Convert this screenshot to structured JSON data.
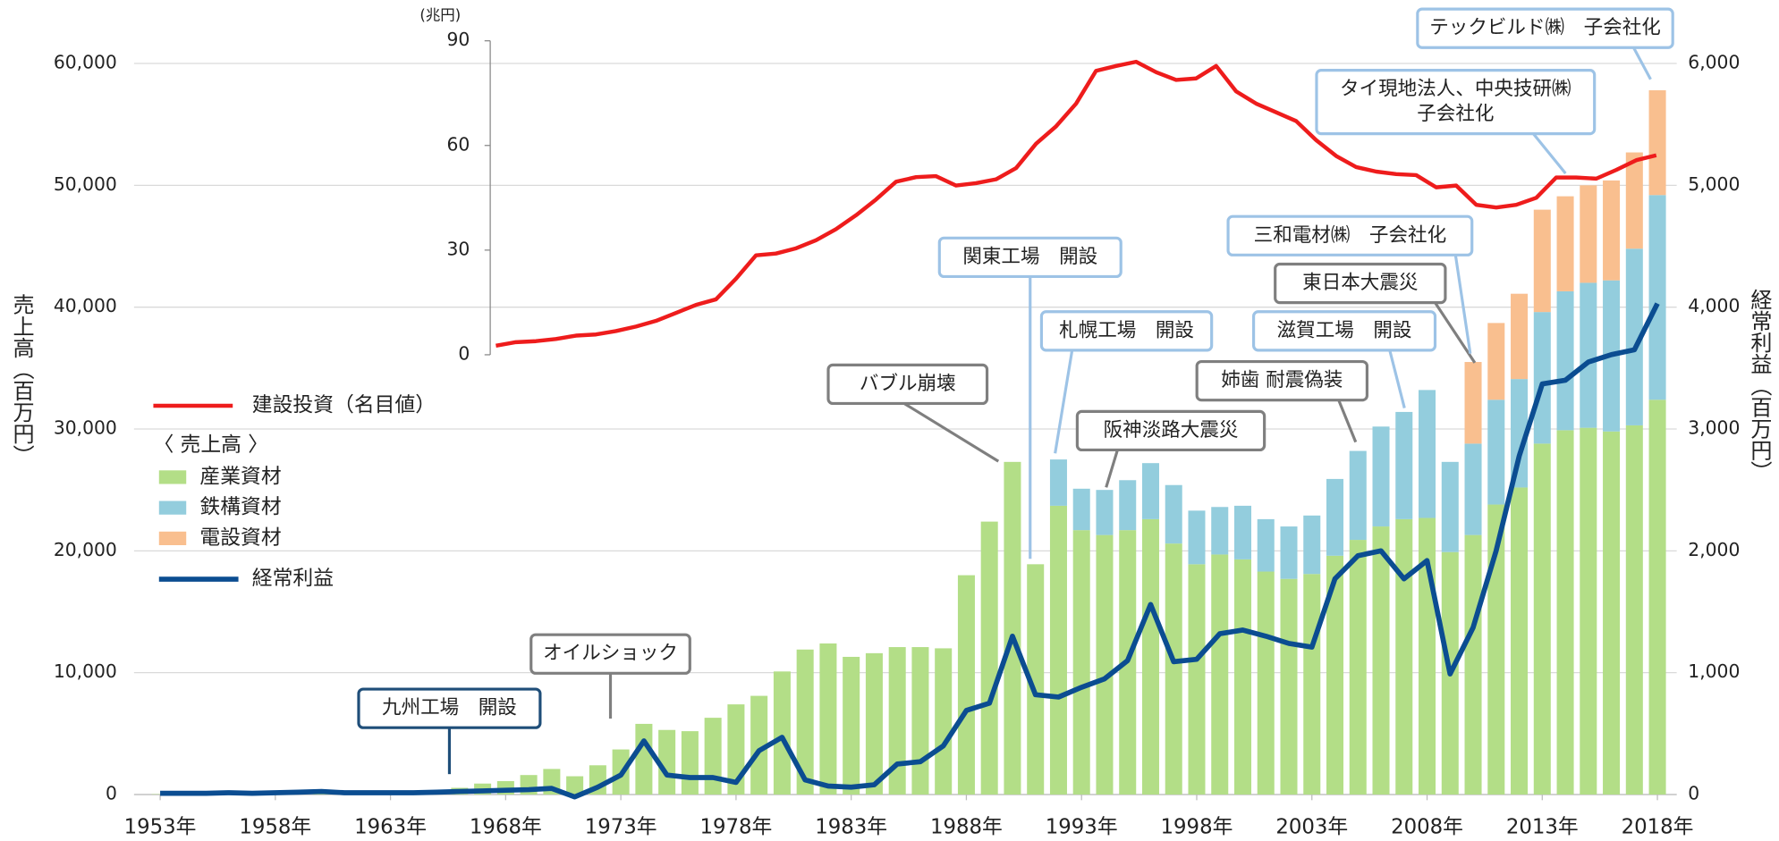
{
  "chart_data": {
    "type": "bar",
    "stacked": true,
    "grid": true,
    "ylabel": "売上高（百万円）",
    "y2label": "経常利益（百万円）",
    "y3label": "(兆円)",
    "legend_group": "〈 売上高 〉",
    "x": [
      1953,
      1954,
      1955,
      1956,
      1957,
      1958,
      1959,
      1960,
      1961,
      1962,
      1963,
      1964,
      1965,
      1966,
      1967,
      1968,
      1969,
      1970,
      1971,
      1972,
      1973,
      1974,
      1975,
      1976,
      1977,
      1978,
      1979,
      1980,
      1981,
      1982,
      1983,
      1984,
      1985,
      1986,
      1987,
      1988,
      1989,
      1990,
      1991,
      1992,
      1993,
      1994,
      1995,
      1996,
      1997,
      1998,
      1999,
      2000,
      2001,
      2002,
      2003,
      2004,
      2005,
      2006,
      2007,
      2008,
      2009,
      2010,
      2011,
      2012,
      2013,
      2014,
      2015,
      2016,
      2017,
      2018
    ],
    "xlim": [
      1953,
      2018
    ],
    "xticks": [
      {
        "value": 1953,
        "label": "1953年"
      },
      {
        "value": 1958,
        "label": "1958年"
      },
      {
        "value": 1963,
        "label": "1963年"
      },
      {
        "value": 1968,
        "label": "1968年"
      },
      {
        "value": 1973,
        "label": "1973年"
      },
      {
        "value": 1978,
        "label": "1978年"
      },
      {
        "value": 1983,
        "label": "1983年"
      },
      {
        "value": 1988,
        "label": "1988年"
      },
      {
        "value": 1993,
        "label": "1993年"
      },
      {
        "value": 1998,
        "label": "1998年"
      },
      {
        "value": 2003,
        "label": "2003年"
      },
      {
        "value": 2008,
        "label": "2008年"
      },
      {
        "value": 2013,
        "label": "2013年"
      },
      {
        "value": 2018,
        "label": "2018年"
      }
    ],
    "ylim": [
      0,
      60000
    ],
    "yticks": [
      0,
      {
        "value": 10000,
        "label": "10,000"
      },
      {
        "value": 20000,
        "label": "20,000"
      },
      {
        "value": 30000,
        "label": "30,000"
      },
      {
        "value": 40000,
        "label": "40,000"
      },
      {
        "value": 50000,
        "label": "50,000"
      },
      {
        "value": 60000,
        "label": "60,000"
      }
    ],
    "y2lim": [
      0,
      6000
    ],
    "y2ticks": [
      0,
      {
        "value": 1000,
        "label": "1,000"
      },
      {
        "value": 2000,
        "label": "2,000"
      },
      {
        "value": 3000,
        "label": "3,000"
      },
      {
        "value": 4000,
        "label": "4,000"
      },
      {
        "value": 5000,
        "label": "5,000"
      },
      {
        "value": 6000,
        "label": "6,000"
      }
    ],
    "y3lim": [
      0,
      90
    ],
    "y3ticks": [
      0,
      30,
      60,
      90
    ],
    "series": [
      {
        "name": "産業資材",
        "type": "bar",
        "color": "#b3de87",
        "values": [
          30,
          40,
          50,
          60,
          70,
          80,
          100,
          120,
          140,
          160,
          200,
          250,
          350,
          550,
          900,
          1100,
          1600,
          2100,
          1500,
          2400,
          3700,
          5800,
          5300,
          5200,
          6300,
          7400,
          8100,
          10100,
          11900,
          12400,
          11300,
          11600,
          12100,
          12100,
          12000,
          18000,
          22400,
          27300,
          18900,
          23700,
          21700,
          21300,
          21700,
          22600,
          20600,
          18900,
          19700,
          19300,
          18300,
          17700,
          18100,
          19600,
          20900,
          22000,
          22600,
          22700,
          19900,
          21300,
          23800,
          25200,
          28800,
          29900,
          30100,
          29800,
          30300,
          32400
        ]
      },
      {
        "name": "鉄構資材",
        "type": "bar",
        "color": "#93cddd",
        "values": [
          null,
          null,
          null,
          null,
          null,
          null,
          null,
          null,
          null,
          null,
          null,
          null,
          null,
          null,
          null,
          null,
          null,
          null,
          null,
          null,
          null,
          null,
          null,
          null,
          null,
          null,
          null,
          null,
          null,
          null,
          null,
          null,
          null,
          null,
          null,
          null,
          null,
          null,
          null,
          3800,
          3400,
          3700,
          4100,
          4600,
          4800,
          4400,
          3900,
          4400,
          4300,
          4300,
          4800,
          6300,
          7300,
          8200,
          8800,
          10500,
          7400,
          7500,
          8600,
          8900,
          10800,
          11400,
          11900,
          12400,
          14500,
          16800
        ]
      },
      {
        "name": "電設資材",
        "type": "bar",
        "color": "#f9bf8f",
        "values": [
          null,
          null,
          null,
          null,
          null,
          null,
          null,
          null,
          null,
          null,
          null,
          null,
          null,
          null,
          null,
          null,
          null,
          null,
          null,
          null,
          null,
          null,
          null,
          null,
          null,
          null,
          null,
          null,
          null,
          null,
          null,
          null,
          null,
          null,
          null,
          null,
          null,
          null,
          null,
          null,
          null,
          null,
          null,
          null,
          null,
          null,
          null,
          null,
          null,
          null,
          null,
          null,
          null,
          null,
          null,
          null,
          null,
          6700,
          6300,
          7000,
          8400,
          7800,
          8000,
          8200,
          7900,
          8600
        ]
      },
      {
        "name": "経常利益",
        "type": "line",
        "axis": "y2",
        "color": "#0b4d91",
        "values": [
          10,
          10,
          10,
          15,
          10,
          15,
          20,
          25,
          15,
          15,
          15,
          15,
          20,
          25,
          30,
          35,
          40,
          50,
          -20,
          60,
          160,
          440,
          160,
          140,
          140,
          100,
          360,
          470,
          120,
          70,
          60,
          80,
          250,
          270,
          400,
          690,
          750,
          1300,
          820,
          800,
          880,
          950,
          1100,
          1560,
          1090,
          1110,
          1320,
          1350,
          1300,
          1240,
          1210,
          1770,
          1960,
          2000,
          1770,
          1920,
          990,
          1370,
          2000,
          2780,
          3370,
          3400,
          3550,
          3610,
          3650,
          4030
        ]
      },
      {
        "name": "建設投資（名目値）",
        "type": "line",
        "axis": "y3",
        "color": "#ee1c1c",
        "x": [
          1960,
          1961,
          1962,
          1963,
          1964,
          1965,
          1966,
          1967,
          1968,
          1969,
          1970,
          1971,
          1972,
          1973,
          1974,
          1975,
          1976,
          1977,
          1978,
          1979,
          1980,
          1981,
          1982,
          1983,
          1984,
          1985,
          1986,
          1987,
          1988,
          1989,
          1990,
          1991,
          1992,
          1993,
          1994,
          1995,
          1996,
          1997,
          1998,
          1999,
          2000,
          2001,
          2002,
          2003,
          2004,
          2005,
          2006,
          2007,
          2008,
          2009,
          2010,
          2011,
          2012,
          2013,
          2014,
          2015,
          2016,
          2017,
          2018
        ],
        "values": [
          2.6,
          3.6,
          3.9,
          4.5,
          5.5,
          5.8,
          6.8,
          8.1,
          9.7,
          12,
          14.3,
          15.9,
          21.8,
          28.5,
          29,
          30.5,
          32.8,
          36,
          40,
          44.5,
          49.6,
          50.9,
          51.2,
          48.5,
          49.2,
          50.3,
          53.5,
          60.5,
          65.5,
          72,
          81.4,
          82.8,
          84,
          81,
          78.8,
          79.2,
          82.8,
          75.5,
          72,
          69.5,
          67,
          61.5,
          57,
          53.8,
          52.5,
          51.8,
          51.5,
          48,
          48.5,
          43,
          42.2,
          43,
          45,
          50.8,
          50.8,
          50.5,
          53,
          55.8,
          57.2
        ]
      }
    ],
    "annotations": [
      [
        "九州工場　開設"
      ],
      [
        "オイルショック"
      ],
      [
        "バブル崩壊"
      ],
      [
        "関東工場　開設"
      ],
      [
        "札幌工場　開設"
      ],
      [
        "阪神淡路大震災"
      ],
      [
        "姉歯 耐震偽装"
      ],
      [
        "滋賀工場　開設"
      ],
      [
        "東日本大震災"
      ],
      [
        "三和電材㈱　子会社化"
      ],
      [
        "タイ現地法人、中央技研㈱",
        "子会社化"
      ],
      [
        "テックビルド㈱　子会社化"
      ]
    ]
  }
}
